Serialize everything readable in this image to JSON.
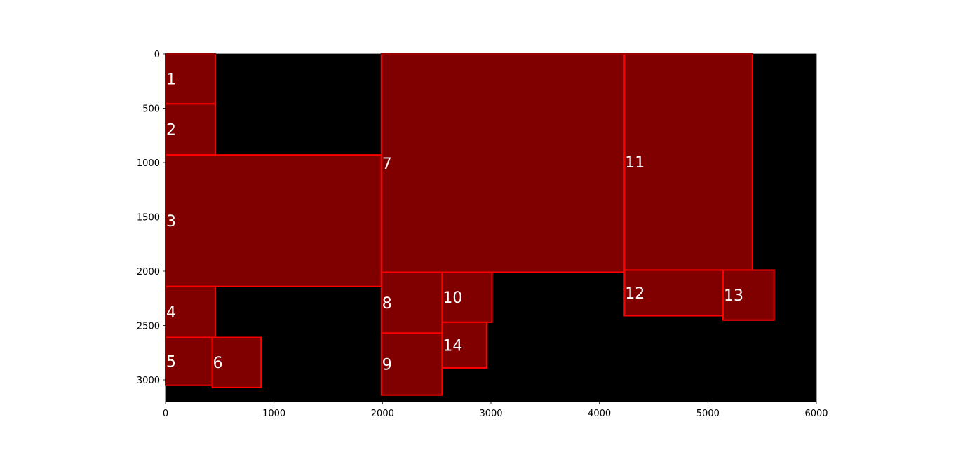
{
  "chart_data": {
    "type": "diagram",
    "title": "",
    "xlabel": "",
    "ylabel": "",
    "xlim": [
      0,
      6000
    ],
    "ylim": [
      3200,
      0
    ],
    "y_inverted": true,
    "x_ticks": [
      "0",
      "1000",
      "2000",
      "3000",
      "4000",
      "5000",
      "6000"
    ],
    "y_ticks": [
      "0",
      "500",
      "1000",
      "1500",
      "2000",
      "2500",
      "3000"
    ],
    "x_tick_values": [
      0,
      1000,
      2000,
      3000,
      4000,
      5000,
      6000
    ],
    "y_tick_values": [
      0,
      500,
      1000,
      1500,
      2000,
      2500,
      3000
    ],
    "background_color": "#000000",
    "fill_color": "#800000",
    "edge_color": "#ff0000",
    "label_color": "#ffffff",
    "rectangles": [
      {
        "id": "1",
        "x0": 0,
        "y0": 0,
        "x1": 460,
        "y1": 460
      },
      {
        "id": "2",
        "x0": 0,
        "y0": 460,
        "x1": 460,
        "y1": 930
      },
      {
        "id": "3",
        "x0": 0,
        "y0": 930,
        "x1": 1990,
        "y1": 2140
      },
      {
        "id": "4",
        "x0": 0,
        "y0": 2140,
        "x1": 460,
        "y1": 2610
      },
      {
        "id": "5",
        "x0": 0,
        "y0": 2610,
        "x1": 430,
        "y1": 3050
      },
      {
        "id": "6",
        "x0": 430,
        "y0": 2610,
        "x1": 880,
        "y1": 3070
      },
      {
        "id": "7",
        "x0": 1990,
        "y0": 0,
        "x1": 4230,
        "y1": 2010
      },
      {
        "id": "8",
        "x0": 1990,
        "y0": 2010,
        "x1": 2550,
        "y1": 2570
      },
      {
        "id": "9",
        "x0": 1990,
        "y0": 2570,
        "x1": 2550,
        "y1": 3140
      },
      {
        "id": "10",
        "x0": 2550,
        "y0": 2010,
        "x1": 3010,
        "y1": 2470
      },
      {
        "id": "11",
        "x0": 4230,
        "y0": 0,
        "x1": 5410,
        "y1": 1990
      },
      {
        "id": "12",
        "x0": 4230,
        "y0": 1990,
        "x1": 5140,
        "y1": 2410
      },
      {
        "id": "13",
        "x0": 5140,
        "y0": 1990,
        "x1": 5610,
        "y1": 2450
      },
      {
        "id": "14",
        "x0": 2550,
        "y0": 2470,
        "x1": 2960,
        "y1": 2890
      }
    ]
  }
}
